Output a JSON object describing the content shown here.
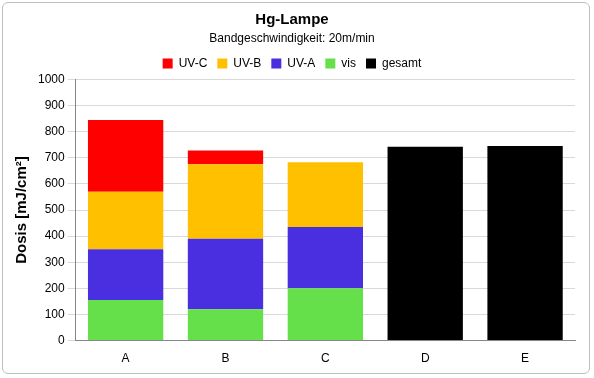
{
  "chart_data": {
    "type": "bar",
    "title": "Hg-Lampe",
    "subtitle": "Bandgeschwindigkeit: 20m/min",
    "y_label": "Dosis [mJ/cm²]",
    "categories": [
      "A",
      "B",
      "C",
      "D",
      "E"
    ],
    "series": [
      {
        "name": "UV-C",
        "color": "#ff0000",
        "values": [
          275,
          53,
          null,
          null,
          null
        ]
      },
      {
        "name": "UV-B",
        "color": "#ffc000",
        "values": [
          220,
          285,
          248,
          null,
          null
        ]
      },
      {
        "name": "UV-A",
        "color": "#4a2fe0",
        "values": [
          195,
          270,
          235,
          null,
          null
        ]
      },
      {
        "name": "vis",
        "color": "#66e04a",
        "values": [
          155,
          120,
          200,
          null,
          null
        ]
      },
      {
        "name": "gesamt",
        "color": "#000000",
        "values": [
          null,
          null,
          null,
          742,
          745
        ]
      }
    ],
    "stacked": true,
    "ylim": [
      0,
      1000
    ],
    "yticks": [
      0,
      100,
      200,
      300,
      400,
      500,
      600,
      700,
      800,
      900,
      1000
    ],
    "grid": true,
    "legend": "top"
  }
}
